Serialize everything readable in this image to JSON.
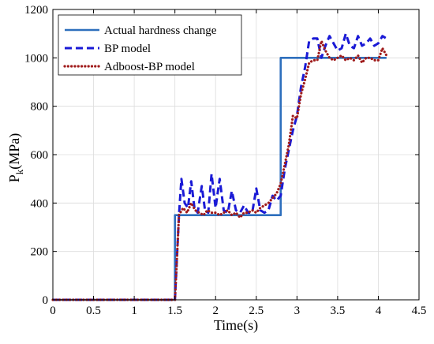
{
  "chart_data": {
    "type": "line",
    "xlabel": "Time(s)",
    "ylabel_main": "P",
    "ylabel_sub": "k",
    "ylabel_unit": "(MPa)",
    "xlim": [
      0,
      4.5
    ],
    "ylim": [
      0,
      1200
    ],
    "xticks": [
      0,
      0.5,
      1,
      1.5,
      2,
      2.5,
      3,
      3.5,
      4,
      4.5
    ],
    "xtick_labels": [
      "0",
      "0.5",
      "1",
      "1.5",
      "2",
      "2.5",
      "3",
      "3.5",
      "4",
      "4.5"
    ],
    "yticks": [
      0,
      200,
      400,
      600,
      800,
      1000,
      1200
    ],
    "ytick_labels": [
      "0",
      "200",
      "400",
      "600",
      "800",
      "1000",
      "1200"
    ],
    "grid": true,
    "legend_position": "top-left",
    "series": [
      {
        "name": "Actual hardness change",
        "color": "#2e6fbd",
        "style": "solid",
        "points": [
          [
            0,
            0
          ],
          [
            1.5,
            0
          ],
          [
            1.5,
            350
          ],
          [
            2.8,
            350
          ],
          [
            2.8,
            1000
          ],
          [
            4.1,
            1000
          ]
        ]
      },
      {
        "name": "BP model",
        "color": "#1a1ad6",
        "style": "dashed",
        "points": [
          [
            0,
            0
          ],
          [
            1.5,
            0
          ],
          [
            1.55,
            350
          ],
          [
            1.58,
            500
          ],
          [
            1.62,
            400
          ],
          [
            1.66,
            380
          ],
          [
            1.7,
            490
          ],
          [
            1.74,
            380
          ],
          [
            1.78,
            360
          ],
          [
            1.83,
            470
          ],
          [
            1.87,
            370
          ],
          [
            1.91,
            360
          ],
          [
            1.95,
            520
          ],
          [
            2.0,
            380
          ],
          [
            2.05,
            500
          ],
          [
            2.1,
            370
          ],
          [
            2.15,
            360
          ],
          [
            2.2,
            450
          ],
          [
            2.25,
            370
          ],
          [
            2.3,
            360
          ],
          [
            2.35,
            390
          ],
          [
            2.4,
            360
          ],
          [
            2.45,
            360
          ],
          [
            2.5,
            460
          ],
          [
            2.55,
            370
          ],
          [
            2.6,
            360
          ],
          [
            2.65,
            370
          ],
          [
            2.7,
            430
          ],
          [
            2.75,
            410
          ],
          [
            2.8,
            430
          ],
          [
            2.85,
            540
          ],
          [
            2.9,
            620
          ],
          [
            2.95,
            700
          ],
          [
            3.0,
            760
          ],
          [
            3.05,
            880
          ],
          [
            3.1,
            960
          ],
          [
            3.15,
            1070
          ],
          [
            3.2,
            1080
          ],
          [
            3.25,
            1080
          ],
          [
            3.3,
            1000
          ],
          [
            3.35,
            1050
          ],
          [
            3.4,
            1090
          ],
          [
            3.45,
            1060
          ],
          [
            3.5,
            1030
          ],
          [
            3.55,
            1040
          ],
          [
            3.6,
            1100
          ],
          [
            3.65,
            1050
          ],
          [
            3.7,
            1040
          ],
          [
            3.75,
            1090
          ],
          [
            3.8,
            1050
          ],
          [
            3.85,
            1060
          ],
          [
            3.9,
            1080
          ],
          [
            3.95,
            1050
          ],
          [
            4.0,
            1060
          ],
          [
            4.05,
            1090
          ],
          [
            4.1,
            1080
          ]
        ]
      },
      {
        "name": "Adboost-BP model",
        "color": "#a01c1c",
        "style": "dotted",
        "points": [
          [
            0,
            0
          ],
          [
            1.5,
            0
          ],
          [
            1.55,
            350
          ],
          [
            1.6,
            380
          ],
          [
            1.65,
            360
          ],
          [
            1.7,
            400
          ],
          [
            1.75,
            370
          ],
          [
            1.8,
            360
          ],
          [
            1.85,
            350
          ],
          [
            1.9,
            370
          ],
          [
            1.95,
            360
          ],
          [
            2.0,
            360
          ],
          [
            2.05,
            350
          ],
          [
            2.1,
            360
          ],
          [
            2.15,
            370
          ],
          [
            2.2,
            350
          ],
          [
            2.25,
            360
          ],
          [
            2.3,
            340
          ],
          [
            2.35,
            360
          ],
          [
            2.4,
            360
          ],
          [
            2.45,
            370
          ],
          [
            2.5,
            360
          ],
          [
            2.55,
            380
          ],
          [
            2.6,
            390
          ],
          [
            2.65,
            400
          ],
          [
            2.7,
            420
          ],
          [
            2.75,
            440
          ],
          [
            2.8,
            480
          ],
          [
            2.85,
            560
          ],
          [
            2.9,
            640
          ],
          [
            2.95,
            760
          ],
          [
            3.0,
            750
          ],
          [
            3.05,
            850
          ],
          [
            3.1,
            910
          ],
          [
            3.15,
            980
          ],
          [
            3.2,
            990
          ],
          [
            3.25,
            990
          ],
          [
            3.3,
            1070
          ],
          [
            3.35,
            1030
          ],
          [
            3.4,
            1000
          ],
          [
            3.45,
            990
          ],
          [
            3.5,
            1000
          ],
          [
            3.55,
            1010
          ],
          [
            3.6,
            990
          ],
          [
            3.65,
            1000
          ],
          [
            3.7,
            990
          ],
          [
            3.75,
            1010
          ],
          [
            3.8,
            980
          ],
          [
            3.85,
            1000
          ],
          [
            3.9,
            1000
          ],
          [
            3.95,
            990
          ],
          [
            4.0,
            990
          ],
          [
            4.05,
            1040
          ],
          [
            4.1,
            1010
          ]
        ]
      }
    ]
  }
}
